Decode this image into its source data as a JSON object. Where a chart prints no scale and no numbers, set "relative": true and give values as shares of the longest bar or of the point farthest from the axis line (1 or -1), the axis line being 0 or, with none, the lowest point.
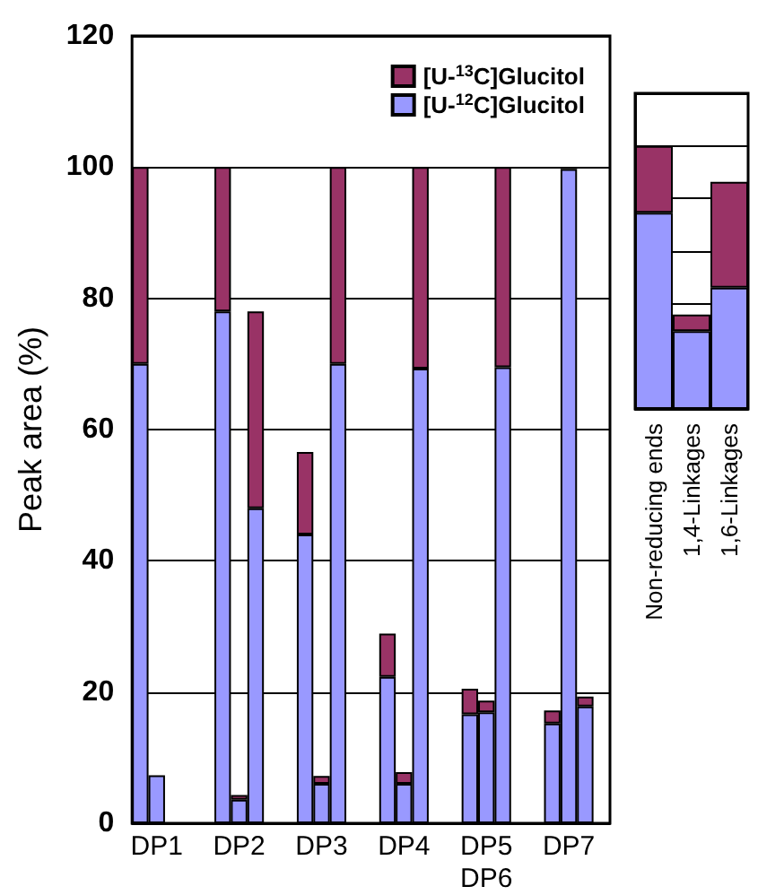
{
  "chart_data": [
    {
      "type": "bar",
      "stacked": true,
      "ylabel": "Peak area (%)",
      "ylim": [
        0,
        120
      ],
      "yticks": [
        0,
        20,
        40,
        60,
        80,
        100,
        120
      ],
      "grid": "y",
      "legend": "top right",
      "categories": [
        null,
        "DP1",
        null,
        null,
        null,
        null,
        "DP2",
        null,
        null,
        null,
        null,
        "DP3",
        null,
        null,
        null,
        null,
        "DP4",
        null,
        null,
        null,
        null,
        "DP5\nDP6",
        null,
        null,
        null,
        null,
        "DP7",
        null,
        null
      ],
      "series": [
        {
          "name": "[U-$^{12}$C]Glucitol",
          "color": "#9999ff",
          "values": [
            70,
            7.3,
            null,
            null,
            null,
            78,
            3.6,
            48,
            null,
            null,
            44,
            6,
            70,
            null,
            null,
            22.3,
            6,
            69.3,
            null,
            null,
            16.6,
            16.9,
            69.5,
            null,
            null,
            15.2,
            99.7,
            17.8,
            null
          ]
        },
        {
          "name": "[U-$^{13}$C]Glucitol",
          "color": "#993366",
          "values": [
            30,
            null,
            null,
            null,
            null,
            22,
            0.7,
            30,
            null,
            null,
            12.6,
            1.2,
            30,
            null,
            null,
            6.6,
            1.8,
            30.7,
            null,
            null,
            3.9,
            1.8,
            30.5,
            null,
            null,
            2,
            0.3,
            1.5,
            null
          ]
        }
      ]
    },
    {
      "type": "bar",
      "stacked": true,
      "relative": true,
      "grid": "y",
      "tick_labels": "x",
      "categories": [
        "Non-reducing ends",
        "1,4-Linkages",
        "1,6-Linkages"
      ],
      "series": [
        {
          "color": "#9999ff",
          "values": [
            0.746,
            0.296,
            0.461
          ]
        },
        {
          "color": "#993366",
          "values": [
            0.254,
            0.063,
            0.402
          ]
        }
      ]
    }
  ]
}
